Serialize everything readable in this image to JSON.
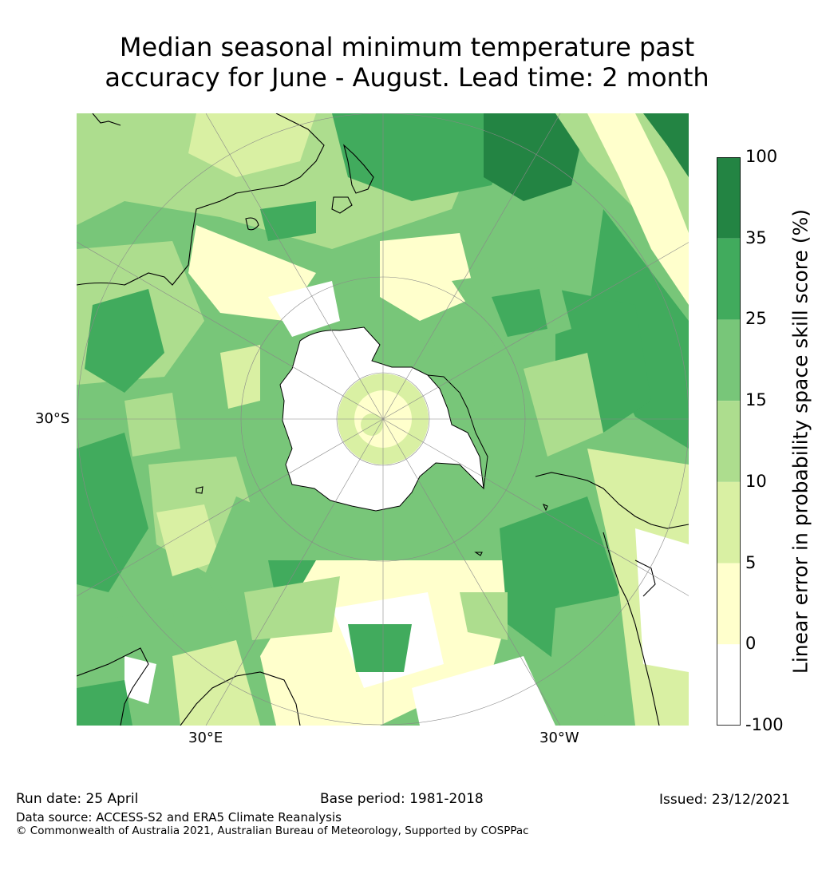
{
  "title_line1": "Median seasonal minimum temperature past",
  "title_line2": "accuracy for June - August. Lead time: 2 month",
  "map": {
    "projection": "south polar stereographic",
    "lat_label": "30°S",
    "lon_labels": [
      "30°E",
      "30°W"
    ],
    "land_outline_color": "#000000",
    "graticule_color": "#888888"
  },
  "colorbar": {
    "title": "Linear error in probability space skill score (%)",
    "tick_labels": [
      "100",
      "35",
      "25",
      "15",
      "10",
      "5",
      "0",
      "-100"
    ],
    "bins": [
      {
        "range": "35 to 100",
        "color": "#238443"
      },
      {
        "range": "25 to 35",
        "color": "#41ab5d"
      },
      {
        "range": "15 to 25",
        "color": "#78c679"
      },
      {
        "range": "10 to 15",
        "color": "#addd8e"
      },
      {
        "range": "5 to 10",
        "color": "#d9f0a3"
      },
      {
        "range": "0 to 5",
        "color": "#ffffcc"
      },
      {
        "range": "-100 to 0",
        "color": "#ffffff"
      }
    ]
  },
  "footer": {
    "run_date": "Run date: 25 April",
    "base_period": "Base period: 1981-2018",
    "issued": "Issued: 23/12/2021",
    "data_source": "Data source: ACCESS-S2 and ERA5 Climate Reanalysis",
    "copyright": "© Commonwealth of Australia 2021, Australian Bureau of Meteorology, Supported by COSPPac"
  }
}
